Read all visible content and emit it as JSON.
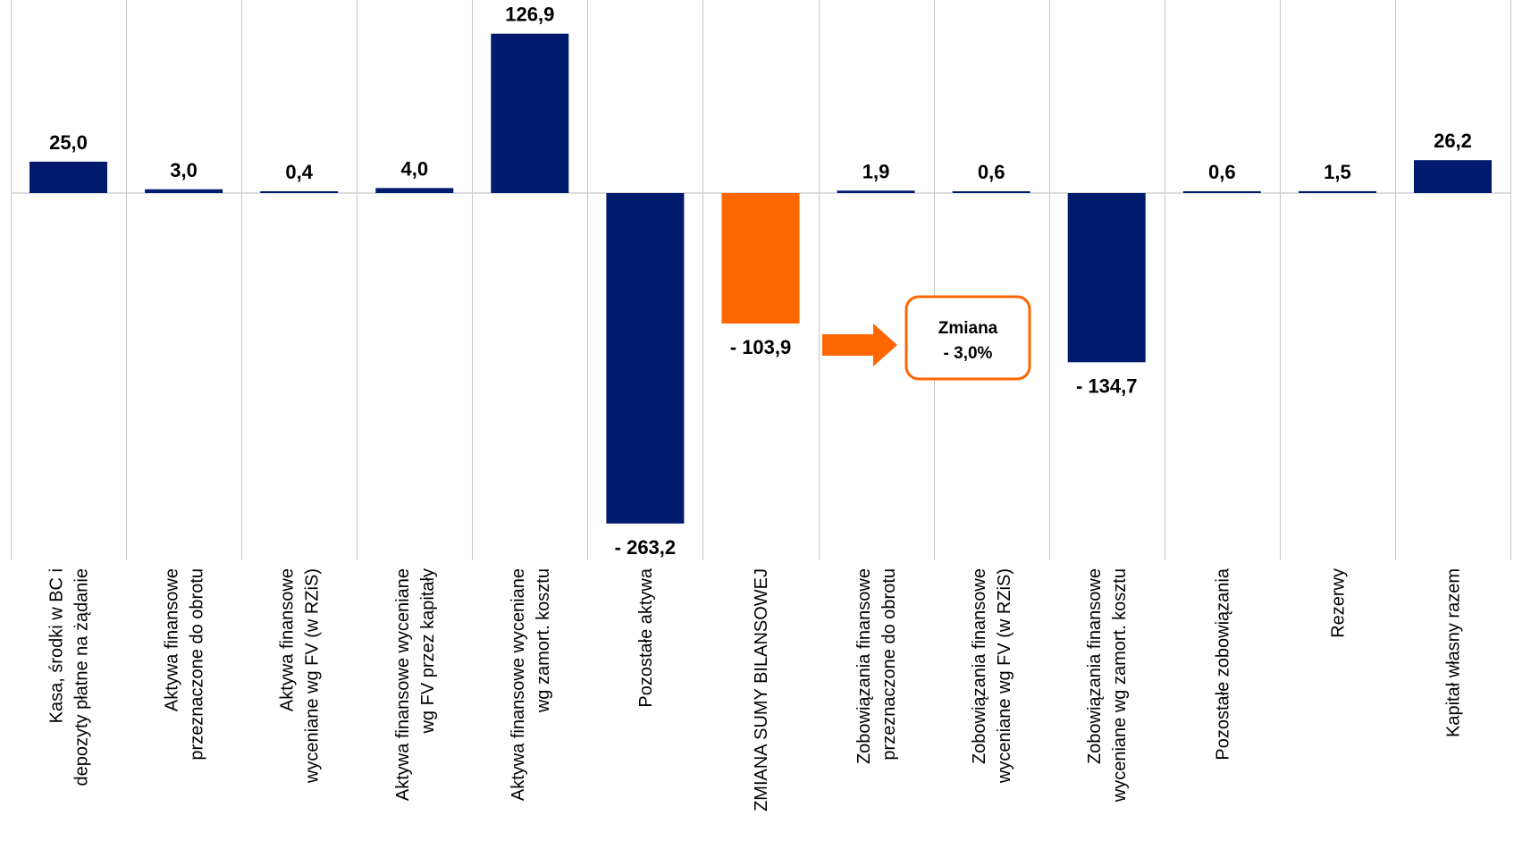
{
  "chart_data": {
    "type": "bar",
    "categories": [
      [
        "Kasa, środki w BC i",
        "depozyty płatne na żądanie"
      ],
      [
        "Aktywa finansowe",
        "przeznaczone do obrotu"
      ],
      [
        "Aktywa finansowe",
        "wyceniane wg FV (w RZiS)"
      ],
      [
        "Aktywa finansowe wyceniane",
        "wg FV przez kapitały"
      ],
      [
        "Aktywa finansowe wyceniane",
        "wg zamort. kosztu"
      ],
      [
        "Pozostałe aktywa"
      ],
      [
        "ZMIANA SUMY BILANSOWEJ"
      ],
      [
        "Zobowiązania finansowe",
        "przeznaczone do obrotu"
      ],
      [
        "Zobowiązania finansowe",
        "wyceniane wg FV (w RZiS)"
      ],
      [
        "Zobowiązania finansowe",
        "wyceniane wg zamort. kosztu"
      ],
      [
        "Pozostałe zobowiązania"
      ],
      [
        "Rezerwy"
      ],
      [
        "Kapitał własny razem"
      ]
    ],
    "values": [
      25.0,
      3.0,
      0.4,
      4.0,
      126.9,
      -263.2,
      -103.9,
      1.9,
      0.6,
      -134.7,
      0.6,
      1.5,
      26.2
    ],
    "value_labels": [
      "25,0",
      "3,0",
      "0,4",
      "4,0",
      "126,9",
      "- 263,2",
      "- 103,9",
      "1,9",
      "0,6",
      "- 134,7",
      "0,6",
      "1,5",
      "26,2"
    ],
    "highlight_index": 6,
    "colors": {
      "default": "#001A6E",
      "highlight": "#FF6600",
      "grid": "#C8C8C8"
    },
    "ylim": [
      -304,
      128
    ],
    "grid": true,
    "annotation": {
      "lines": [
        "Zmiana",
        "- 3,0%"
      ],
      "color": "#FF6600",
      "arrow": true
    }
  }
}
